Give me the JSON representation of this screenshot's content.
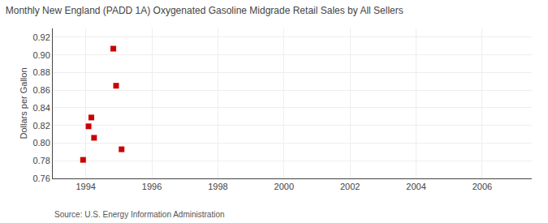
{
  "chart_data": {
    "type": "scatter",
    "title": "Monthly New England (PADD 1A) Oxygenated Gasoline Midgrade Retail Sales by All Sellers",
    "ylabel": "Dollars per Gallon",
    "annotations": [
      "Source: U.S. Energy Information Administration"
    ],
    "x": [
      1993.917,
      1994.083,
      1994.167,
      1994.25,
      1994.833,
      1994.917,
      1995.083
    ],
    "values": [
      0.781,
      0.819,
      0.829,
      0.806,
      0.907,
      0.865,
      0.793
    ],
    "color": "#cc0000",
    "marker": "square",
    "xlim": [
      1993.0,
      2007.5
    ],
    "ylim": [
      0.76,
      0.93
    ],
    "xticks": [
      1994,
      1996,
      1998,
      2000,
      2002,
      2004,
      2006
    ],
    "yticks": [
      0.76,
      0.78,
      {
        "value": 0.8,
        "label": "0.80"
      },
      0.82,
      0.84,
      0.86,
      0.88,
      {
        "value": 0.9,
        "label": "0.90"
      },
      0.92
    ],
    "grid": true
  }
}
